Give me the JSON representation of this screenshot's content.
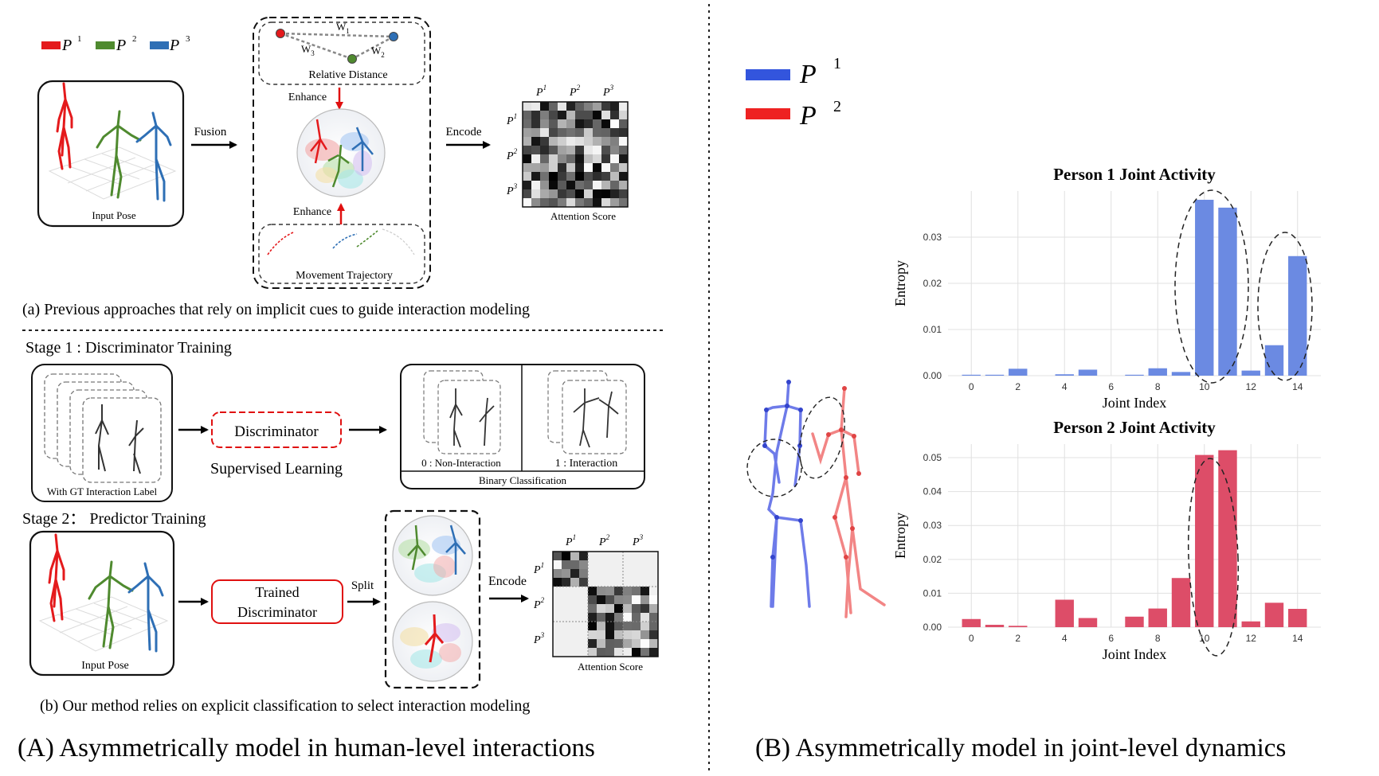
{
  "panel_a": {
    "legend": [
      {
        "sym": "P",
        "sup": "1",
        "color": "#e41a1c"
      },
      {
        "sym": "P",
        "sup": "2",
        "color": "#4f8a2f"
      },
      {
        "sym": "P",
        "sup": "3",
        "color": "#2e6fb5"
      }
    ],
    "input_pose": "Input Pose",
    "fusion": "Fusion",
    "relative_distance": "Relative Distance",
    "w1": "W",
    "w1_sub": "1",
    "w2": "W",
    "w2_sub": "2",
    "w3": "W",
    "w3_sub": "3",
    "enhance_top": "Enhance",
    "enhance_bottom": "Enhance",
    "movement_trajectory": "Movement Trajectory",
    "encode": "Encode",
    "attention_score": "Attention Score",
    "matrix_labels": [
      "P",
      "P",
      "P"
    ],
    "matrix_sups": [
      "1",
      "2",
      "3"
    ],
    "caption": "(a) Previous approaches that rely on implicit cues to guide interaction modeling"
  },
  "panel_b": {
    "stage1": "Stage 1 : Discriminator Training",
    "gt_label": "With GT Interaction Label",
    "discriminator": "Discriminator",
    "supervised": "Supervised Learning",
    "non_interaction": "0 : Non-Interaction",
    "interaction": "1 : Interaction",
    "binary": "Binary Classification",
    "stage2": "Stage 2： Predictor Training",
    "input_pose": "Input Pose",
    "trained_1": "Trained",
    "trained_2": "Discriminator",
    "split": "Split",
    "encode": "Encode",
    "attention_score": "Attention Score",
    "caption": "(b) Our method relies on explicit classification to select interaction modeling"
  },
  "section_a_title": "(A) Asymmetrically model in human-level interactions",
  "section_b_title": "(B) Asymmetrically model in  joint-level dynamics",
  "panel_B_legend": [
    {
      "sym": "P",
      "sup": "1",
      "color": "#3355dd"
    },
    {
      "sym": "P",
      "sup": "2",
      "color": "#ee2222"
    }
  ],
  "chart_data": [
    {
      "type": "bar",
      "title": "Person 1 Joint Activity",
      "xlabel": "Joint Index",
      "ylabel": "Entropy",
      "x": [
        0,
        1,
        2,
        3,
        4,
        5,
        6,
        7,
        8,
        9,
        10,
        11,
        12,
        13,
        14
      ],
      "values": [
        0.0002,
        0.0002,
        0.0015,
        0.0,
        0.0003,
        0.0013,
        0.0,
        0.0002,
        0.0016,
        0.0008,
        0.0381,
        0.0364,
        0.0011,
        0.0066,
        0.0259
      ],
      "xticks": [
        0,
        2,
        4,
        6,
        8,
        10,
        12,
        14
      ],
      "yticks": [
        0.0,
        0.01,
        0.02,
        0.03
      ],
      "ytick_labels": [
        "0.00",
        "0.01",
        "0.02",
        "0.03"
      ],
      "ylim": [
        0,
        0.04
      ],
      "color": "#6b8ae2",
      "grid": true
    },
    {
      "type": "bar",
      "title": "Person 2 Joint Activity",
      "xlabel": "Joint Index",
      "ylabel": "Entropy",
      "x": [
        0,
        1,
        2,
        3,
        4,
        5,
        6,
        7,
        8,
        9,
        10,
        11,
        12,
        13,
        14
      ],
      "values": [
        0.0024,
        0.0007,
        0.0004,
        0.0,
        0.0081,
        0.0027,
        0.0,
        0.0031,
        0.0055,
        0.0145,
        0.0508,
        0.0522,
        0.0017,
        0.0072,
        0.0054
      ],
      "xticks": [
        0,
        2,
        4,
        6,
        8,
        10,
        12,
        14
      ],
      "yticks": [
        0.0,
        0.01,
        0.02,
        0.03,
        0.04,
        0.05
      ],
      "ytick_labels": [
        "0.00",
        "0.01",
        "0.02",
        "0.03",
        "0.04",
        "0.05"
      ],
      "ylim": [
        0,
        0.054
      ],
      "color": "#dd4d68",
      "grid": true
    }
  ]
}
